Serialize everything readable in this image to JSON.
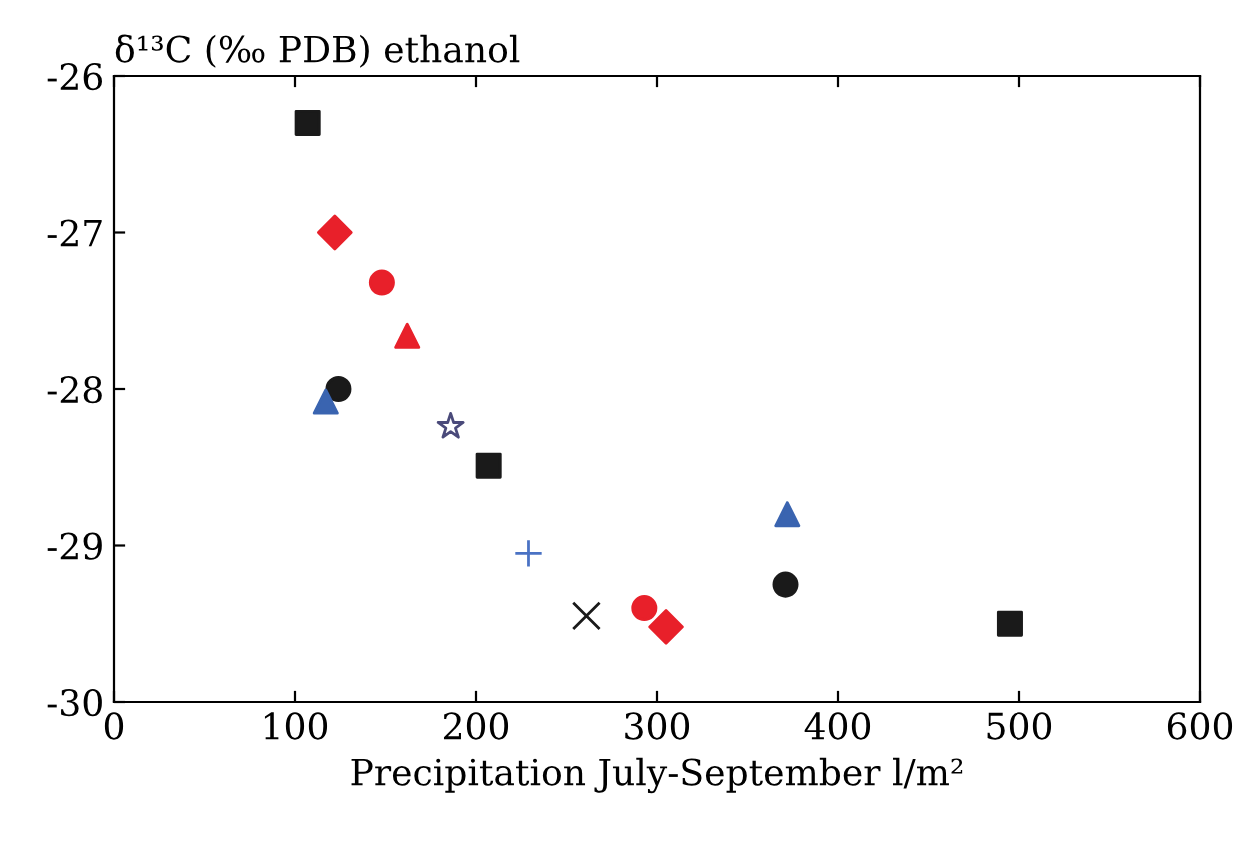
{
  "chart_data": {
    "type": "scatter",
    "ylabel": "δ¹³C (‰ PDB) ethanol",
    "xlabel": "Precipitation July-September l/m²",
    "xlim": [
      0,
      600
    ],
    "xticks": [
      0,
      100,
      200,
      300,
      400,
      500,
      600
    ],
    "ylim": [
      -30,
      -26
    ],
    "yticks": [
      -30,
      -29,
      -28,
      -27,
      -26
    ],
    "grid": false,
    "legend": false,
    "series": [
      {
        "marker": "square",
        "color": "#1a1a1a",
        "x": [
          107
        ],
        "values": [
          -26.3
        ]
      },
      {
        "marker": "diamond",
        "color": "#e8202a",
        "x": [
          122,
          305
        ],
        "values": [
          -27.0,
          -29.52
        ]
      },
      {
        "marker": "circle",
        "color": "#e8202a",
        "x": [
          148,
          293
        ],
        "values": [
          -27.32,
          -29.4
        ]
      },
      {
        "marker": "triangle",
        "color": "#e8202a",
        "x": [
          162
        ],
        "values": [
          -27.66
        ]
      },
      {
        "marker": "circle",
        "color": "#1a1a1a",
        "x": [
          124,
          371
        ],
        "values": [
          -28.0,
          -29.25
        ]
      },
      {
        "marker": "triangle",
        "color": "#3a64b0",
        "x": [
          117,
          372
        ],
        "values": [
          -28.08,
          -28.8
        ]
      },
      {
        "marker": "star",
        "color": "#4a4a7a",
        "x": [
          186
        ],
        "values": [
          -28.24
        ]
      },
      {
        "marker": "square",
        "color": "#1a1a1a",
        "x": [
          207,
          495
        ],
        "values": [
          -28.49,
          -29.5
        ]
      },
      {
        "marker": "plus",
        "color": "#4a72c4",
        "x": [
          229
        ],
        "values": [
          -29.05
        ]
      },
      {
        "marker": "cross",
        "color": "#1a1a1a",
        "x": [
          261
        ],
        "values": [
          -29.45
        ]
      }
    ]
  }
}
